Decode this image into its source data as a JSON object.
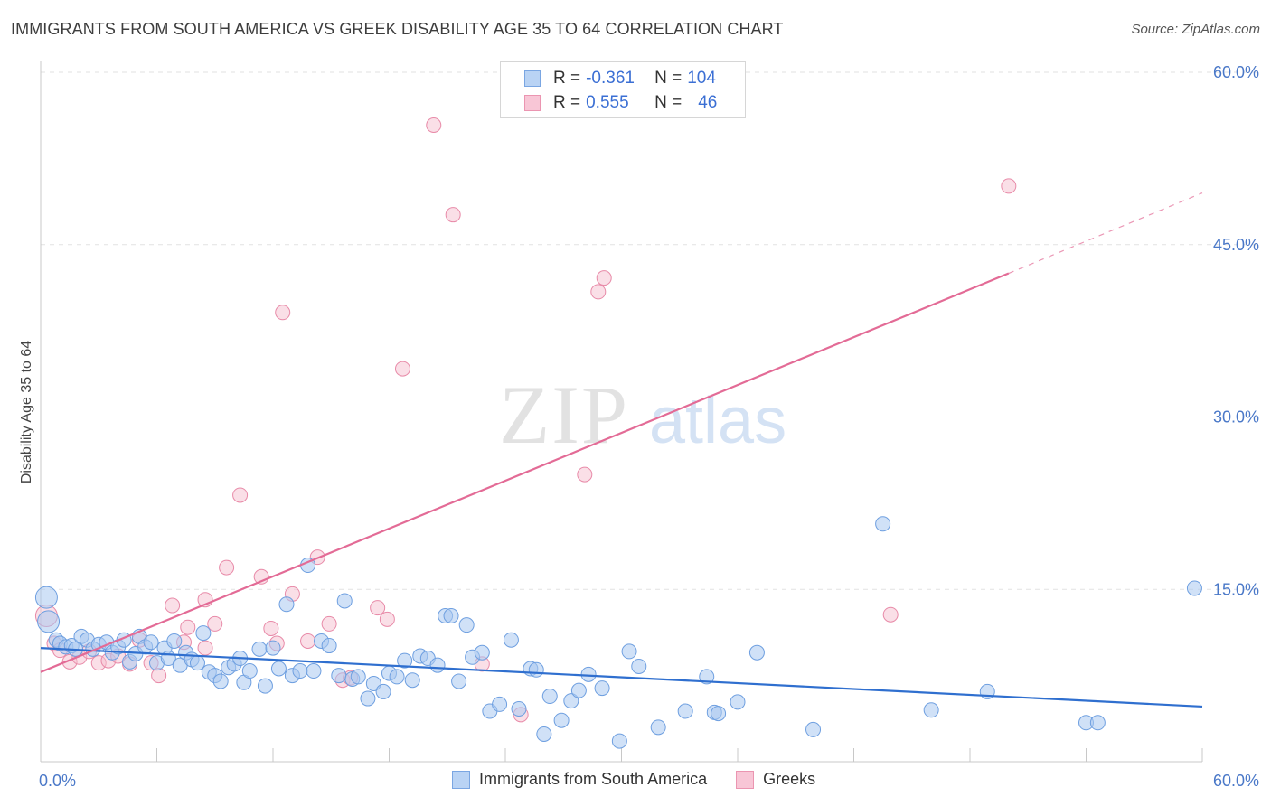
{
  "header": {
    "title": "IMMIGRANTS FROM SOUTH AMERICA VS GREEK DISABILITY AGE 35 TO 64 CORRELATION CHART",
    "source": "Source: ZipAtlas.com"
  },
  "watermark": {
    "zip": "ZIP",
    "atlas": "atlas"
  },
  "legend": {
    "rows": [
      {
        "r_label": "R =",
        "r_value": "-0.361",
        "n_label": "N =",
        "n_value": "104"
      },
      {
        "r_label": "R =",
        "r_value": "0.555",
        "n_label": "N =",
        "n_value": "46"
      }
    ]
  },
  "colors": {
    "blue_fill": "#a9c8f0",
    "blue_stroke": "#6e9fe0",
    "blue_line": "#2f6fcf",
    "pink_fill": "#f6bfd0",
    "pink_stroke": "#e88aa8",
    "pink_line": "#e36b96",
    "tick_color": "#4a78c8"
  },
  "chart_data": {
    "type": "scatter",
    "title": "IMMIGRANTS FROM SOUTH AMERICA VS GREEK DISABILITY AGE 35 TO 64 CORRELATION CHART",
    "xlabel": "",
    "ylabel": "Disability Age 35 to 64",
    "xlim": [
      0,
      60
    ],
    "ylim": [
      0,
      60
    ],
    "x_tick_labels": [
      "0.0%",
      "60.0%"
    ],
    "y_tick_labels": [
      "15.0%",
      "30.0%",
      "45.0%",
      "60.0%"
    ],
    "y_tick_values": [
      15,
      30,
      45,
      60
    ],
    "grid": true,
    "series": [
      {
        "name": "Immigrants from South America",
        "r": -0.361,
        "n": 104,
        "trend": {
          "x": [
            0,
            60
          ],
          "y": [
            9.9,
            4.8
          ],
          "dashed_to": null
        },
        "points": [
          [
            0.3,
            14.3
          ],
          [
            0.4,
            12.2
          ],
          [
            0.8,
            10.6
          ],
          [
            1.0,
            10.3
          ],
          [
            1.3,
            10.0
          ],
          [
            1.6,
            10.1
          ],
          [
            1.8,
            9.8
          ],
          [
            2.1,
            10.9
          ],
          [
            2.4,
            10.6
          ],
          [
            2.7,
            9.8
          ],
          [
            3.0,
            10.2
          ],
          [
            3.4,
            10.4
          ],
          [
            3.7,
            9.5
          ],
          [
            4.0,
            10.0
          ],
          [
            4.3,
            10.6
          ],
          [
            4.6,
            8.7
          ],
          [
            4.9,
            9.4
          ],
          [
            5.1,
            10.9
          ],
          [
            5.4,
            10.0
          ],
          [
            5.7,
            10.4
          ],
          [
            6.0,
            8.6
          ],
          [
            6.4,
            9.9
          ],
          [
            6.6,
            9.0
          ],
          [
            6.9,
            10.5
          ],
          [
            7.2,
            8.4
          ],
          [
            7.5,
            9.5
          ],
          [
            7.8,
            8.9
          ],
          [
            8.1,
            8.6
          ],
          [
            8.4,
            11.2
          ],
          [
            8.7,
            7.8
          ],
          [
            9.0,
            7.5
          ],
          [
            9.3,
            7.0
          ],
          [
            9.7,
            8.2
          ],
          [
            10.0,
            8.5
          ],
          [
            10.3,
            9.0
          ],
          [
            10.5,
            6.9
          ],
          [
            10.8,
            7.9
          ],
          [
            11.3,
            9.8
          ],
          [
            11.6,
            6.6
          ],
          [
            12.0,
            9.9
          ],
          [
            12.3,
            8.1
          ],
          [
            12.7,
            13.7
          ],
          [
            13.0,
            7.5
          ],
          [
            13.4,
            7.9
          ],
          [
            13.8,
            17.1
          ],
          [
            14.1,
            7.9
          ],
          [
            14.5,
            10.5
          ],
          [
            14.9,
            10.1
          ],
          [
            15.4,
            7.5
          ],
          [
            15.7,
            14.0
          ],
          [
            16.1,
            7.2
          ],
          [
            16.4,
            7.4
          ],
          [
            16.9,
            5.5
          ],
          [
            17.2,
            6.8
          ],
          [
            17.7,
            6.1
          ],
          [
            18.0,
            7.7
          ],
          [
            18.4,
            7.4
          ],
          [
            18.8,
            8.8
          ],
          [
            19.2,
            7.1
          ],
          [
            19.6,
            9.2
          ],
          [
            20.0,
            9.0
          ],
          [
            20.5,
            8.4
          ],
          [
            20.9,
            12.7
          ],
          [
            21.2,
            12.7
          ],
          [
            21.6,
            7.0
          ],
          [
            22.0,
            11.9
          ],
          [
            22.3,
            9.1
          ],
          [
            22.8,
            9.5
          ],
          [
            23.2,
            4.4
          ],
          [
            23.7,
            5.0
          ],
          [
            24.3,
            10.6
          ],
          [
            24.7,
            4.6
          ],
          [
            25.3,
            8.1
          ],
          [
            25.6,
            8.0
          ],
          [
            26.0,
            2.4
          ],
          [
            26.3,
            5.7
          ],
          [
            26.9,
            3.6
          ],
          [
            27.4,
            5.3
          ],
          [
            27.8,
            6.2
          ],
          [
            28.3,
            7.6
          ],
          [
            29.0,
            6.4
          ],
          [
            29.9,
            1.8
          ],
          [
            30.4,
            9.6
          ],
          [
            30.9,
            8.3
          ],
          [
            31.9,
            3.0
          ],
          [
            33.3,
            4.4
          ],
          [
            34.4,
            7.4
          ],
          [
            34.8,
            4.3
          ],
          [
            35.0,
            4.2
          ],
          [
            36.0,
            5.2
          ],
          [
            37.0,
            9.5
          ],
          [
            39.9,
            2.8
          ],
          [
            43.5,
            20.7
          ],
          [
            46.0,
            4.5
          ],
          [
            48.9,
            6.1
          ],
          [
            54.0,
            3.4
          ],
          [
            54.6,
            3.4
          ],
          [
            59.6,
            15.1
          ]
        ]
      },
      {
        "name": "Greeks",
        "r": 0.555,
        "n": 46,
        "trend": {
          "x": [
            0,
            50.0
          ],
          "y": [
            7.8,
            42.5
          ],
          "dashed_to": [
            60,
            49.5
          ]
        },
        "points": [
          [
            0.3,
            12.7
          ],
          [
            0.7,
            10.3
          ],
          [
            1.0,
            9.7
          ],
          [
            1.5,
            8.7
          ],
          [
            2.0,
            9.1
          ],
          [
            2.5,
            9.6
          ],
          [
            3.0,
            8.6
          ],
          [
            3.5,
            8.8
          ],
          [
            4.0,
            9.2
          ],
          [
            4.6,
            8.5
          ],
          [
            5.1,
            10.6
          ],
          [
            5.7,
            8.6
          ],
          [
            6.1,
            7.5
          ],
          [
            6.8,
            13.6
          ],
          [
            7.4,
            10.4
          ],
          [
            7.6,
            11.7
          ],
          [
            8.5,
            14.1
          ],
          [
            8.5,
            9.9
          ],
          [
            9.0,
            12.0
          ],
          [
            9.6,
            16.9
          ],
          [
            10.3,
            23.2
          ],
          [
            11.4,
            16.1
          ],
          [
            11.9,
            11.6
          ],
          [
            12.2,
            10.3
          ],
          [
            12.5,
            39.1
          ],
          [
            13.0,
            14.6
          ],
          [
            13.8,
            10.5
          ],
          [
            14.3,
            17.8
          ],
          [
            14.9,
            12.0
          ],
          [
            15.6,
            7.1
          ],
          [
            16.0,
            7.3
          ],
          [
            17.4,
            13.4
          ],
          [
            17.9,
            12.4
          ],
          [
            18.7,
            34.2
          ],
          [
            20.3,
            55.4
          ],
          [
            21.3,
            47.6
          ],
          [
            22.8,
            8.5
          ],
          [
            24.8,
            4.1
          ],
          [
            28.1,
            25.0
          ],
          [
            28.8,
            40.9
          ],
          [
            29.1,
            42.1
          ],
          [
            43.9,
            12.8
          ],
          [
            50.0,
            50.1
          ]
        ]
      }
    ]
  }
}
